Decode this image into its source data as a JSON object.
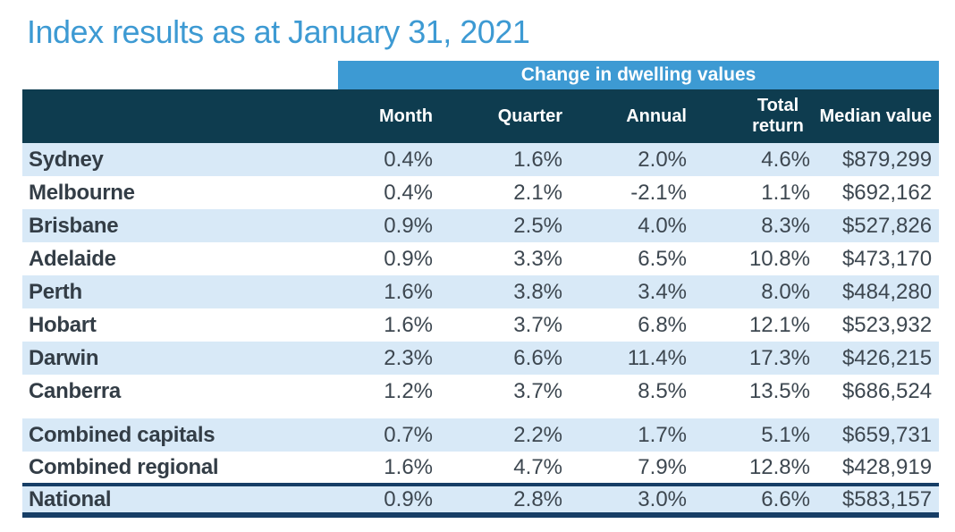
{
  "title": "Index results as at January 31, 2021",
  "chart_data": {
    "type": "table",
    "title": "Index results as at January 31, 2021",
    "spanner": "Change in dwelling values",
    "columns": [
      "",
      "Month",
      "Quarter",
      "Annual",
      "Total return",
      "Median value"
    ],
    "rows": [
      [
        "Sydney",
        "0.4%",
        "1.6%",
        "2.0%",
        "4.6%",
        "$879,299"
      ],
      [
        "Melbourne",
        "0.4%",
        "2.1%",
        "-2.1%",
        "1.1%",
        "$692,162"
      ],
      [
        "Brisbane",
        "0.9%",
        "2.5%",
        "4.0%",
        "8.3%",
        "$527,826"
      ],
      [
        "Adelaide",
        "0.9%",
        "3.3%",
        "6.5%",
        "10.8%",
        "$473,170"
      ],
      [
        "Perth",
        "1.6%",
        "3.8%",
        "3.4%",
        "8.0%",
        "$484,280"
      ],
      [
        "Hobart",
        "1.6%",
        "3.7%",
        "6.8%",
        "12.1%",
        "$523,932"
      ],
      [
        "Darwin",
        "2.3%",
        "6.6%",
        "11.4%",
        "17.3%",
        "$426,215"
      ],
      [
        "Canberra",
        "1.2%",
        "3.7%",
        "8.5%",
        "13.5%",
        "$686,524"
      ],
      [
        "Combined capitals",
        "0.7%",
        "2.2%",
        "1.7%",
        "5.1%",
        "$659,731"
      ],
      [
        "Combined regional",
        "1.6%",
        "4.7%",
        "7.9%",
        "12.8%",
        "$428,919"
      ],
      [
        "National",
        "0.9%",
        "2.8%",
        "3.0%",
        "6.6%",
        "$583,157"
      ]
    ],
    "layout_hints": {
      "row_groups": [
        "capital cities: rows 0-7",
        "combined aggregates: rows 8-9",
        "national: row 10"
      ],
      "striping": "alternating light blue starting at row 0",
      "national_row_framed": true
    }
  },
  "colors": {
    "title_blue": "#3d9ad3",
    "spanner_bar_blue": "#3d9ad3",
    "header_navy": "#0e3c4f",
    "row_shade_blue": "#d8e9f7",
    "national_border_navy": "#173e66",
    "label_text": "#333d46",
    "value_text": "#3d4750"
  }
}
